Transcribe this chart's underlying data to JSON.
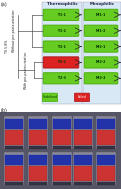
{
  "title_a": "(a)",
  "title_b": "(b)",
  "thermophilic_label": "Thermophilic",
  "mesophilic_label": "Mesophilic",
  "without_label": "Without pre-pasteurization",
  "with_label": "With pre-pasteurization",
  "ts_label": "TS 5.8%",
  "legend_stabilized": "Stabilized",
  "legend_failed": "Failed",
  "rows": [
    {
      "thermo_color": "#66cc22",
      "meso_color": "#66cc22",
      "thermo_text": "T-1-1",
      "meso_text": "M-1-1"
    },
    {
      "thermo_color": "#66cc22",
      "meso_color": "#66cc22",
      "thermo_text": "T-1-2",
      "meso_text": "M-1-2"
    },
    {
      "thermo_color": "#66cc22",
      "meso_color": "#66cc22",
      "thermo_text": "T-2-1",
      "meso_text": "M-2-1"
    },
    {
      "thermo_color": "#dd2222",
      "meso_color": "#66cc22",
      "thermo_text": "T-2-2",
      "meso_text": "M-2-2"
    },
    {
      "thermo_color": "#66cc22",
      "meso_color": "#66cc22",
      "thermo_text": "T-2-3",
      "meso_text": "M-2-3"
    }
  ],
  "bg_thermo": "#d8e8f4",
  "bg_meso": "#d8e8f4",
  "box_border_ok": "#44aa00",
  "box_border_fail": "#aa1111",
  "arrow_color": "#222222",
  "text_color": "#111111",
  "line_color": "#555555",
  "photo_bg": "#5a5a7a",
  "photo_mid": "#7a4040",
  "screen_color": "#2233aa"
}
